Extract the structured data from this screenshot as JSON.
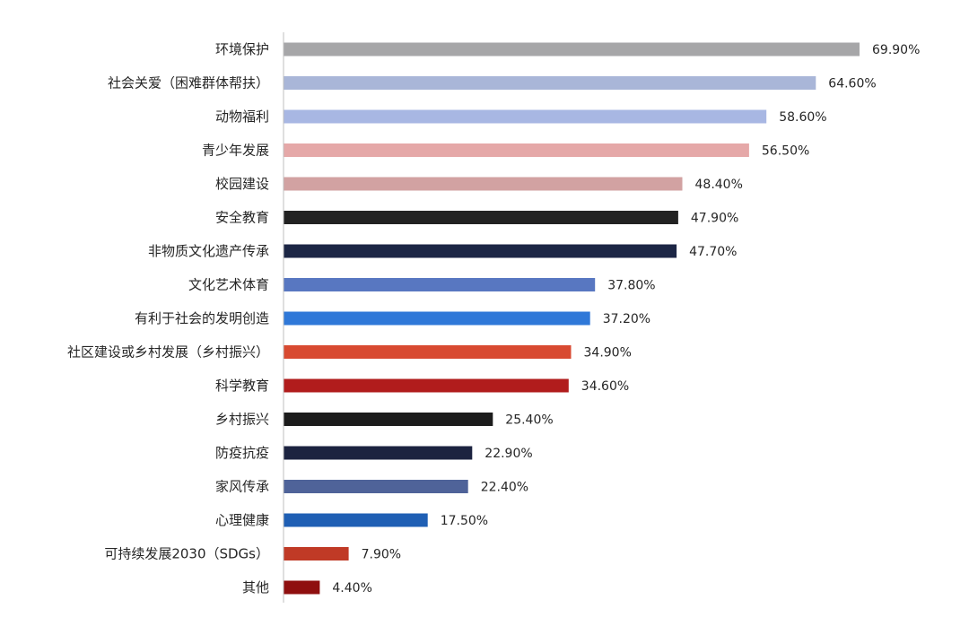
{
  "chart_data": {
    "type": "bar",
    "orientation": "horizontal",
    "title": "",
    "xlabel": "",
    "ylabel": "",
    "xlim": [
      0,
      70
    ],
    "grid": false,
    "legend": "none",
    "value_suffix": "%",
    "categories": [
      "环境保护",
      "社会关爱（困难群体帮扶）",
      "动物福利",
      "青少年发展",
      "校园建设",
      "安全教育",
      "非物质文化遗产传承",
      "文化艺术体育",
      "有利于社会的发明创造",
      "社区建设或乡村发展（乡村振兴）",
      "科学教育",
      "乡村振兴",
      "防疫抗疫",
      "家风传承",
      "心理健康",
      "可持续发展2030（SDGs）",
      "其他"
    ],
    "values": [
      69.9,
      64.6,
      58.6,
      56.5,
      48.4,
      47.9,
      47.7,
      37.8,
      37.2,
      34.9,
      34.6,
      25.4,
      22.9,
      22.4,
      17.5,
      7.9,
      4.4
    ],
    "value_labels": [
      "69.90%",
      "64.60%",
      "58.60%",
      "56.50%",
      "48.40%",
      "47.90%",
      "47.70%",
      "37.80%",
      "37.20%",
      "34.90%",
      "34.60%",
      "25.40%",
      "22.90%",
      "22.40%",
      "17.50%",
      "7.90%",
      "4.40%"
    ],
    "colors": [
      "#a6a6a8",
      "#a9b6d8",
      "#a8b7e3",
      "#e5a8a8",
      "#d2a2a2",
      "#222222",
      "#1c2645",
      "#5877c1",
      "#2f78d8",
      "#d84a31",
      "#b11c1c",
      "#1c1c1c",
      "#1c2340",
      "#4f6399",
      "#1f5fb4",
      "#c03a26",
      "#8f0f0f"
    ],
    "axis_color": "#bfbfbf"
  }
}
